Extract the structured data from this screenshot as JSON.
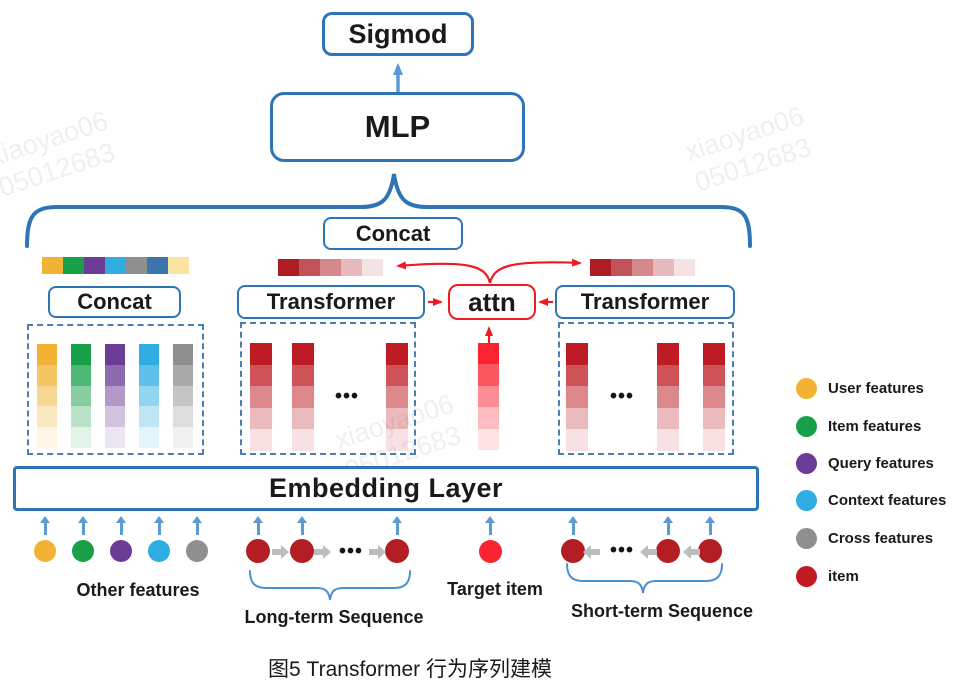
{
  "figure": {
    "caption": "图5 Transformer 行为序列建模",
    "watermark_lines": [
      "xiaoyao06",
      "05012683"
    ]
  },
  "nodes": {
    "sigmoid_label": "Sigmod",
    "mlp_label": "MLP",
    "concat_top_label": "Concat",
    "concat_left_label": "Concat",
    "transformer_left_label": "Transformer",
    "transformer_right_label": "Transformer",
    "attn_label": "attn",
    "embedding_label": "Embedding Layer",
    "ellipsis": "•••"
  },
  "labels": {
    "other_features": "Other features",
    "long_term": "Long-term Sequence",
    "target_item": "Target item",
    "short_term": "Short-term Sequence"
  },
  "legend": [
    {
      "label": "User features",
      "color": "#F2B234"
    },
    {
      "label": "Item features",
      "color": "#18A049"
    },
    {
      "label": "Query features",
      "color": "#6B3B96"
    },
    {
      "label": "Context features",
      "color": "#2FACE2"
    },
    {
      "label": "Cross features",
      "color": "#8F8F8F"
    },
    {
      "label": "item",
      "color": "#BE1B24"
    }
  ],
  "feature_strip": [
    "#F2B234",
    "#18A049",
    "#6B3B96",
    "#2FACE2",
    "#8F8F8F",
    "#3C74AE",
    "#FBE3A3"
  ],
  "red_strip_base": "#AE1C24",
  "gradient_opacities": [
    1,
    0.76,
    0.52,
    0.3,
    0.13
  ],
  "embed_columns": {
    "other_bases": [
      "#F2B234",
      "#18A049",
      "#6B3B96",
      "#2FACE2",
      "#8F8F8F"
    ],
    "seq_base": "#BE1B24",
    "target_base": "#FA2430"
  },
  "colors": {
    "box_border_blue": "#2E75B6",
    "light_blue_arrow": "#5B9BD5",
    "red_accent": "#ED1C24",
    "dashed_border": "#4A7FB5",
    "brace_blue": "#4A90D2",
    "gray_arrow": "#BDBDBD",
    "seq_item_red": "#B41D23",
    "target_item_red": "#FA2430",
    "watermark_gray": "#EFEFEF",
    "text_dark": "#1A1A1A"
  }
}
